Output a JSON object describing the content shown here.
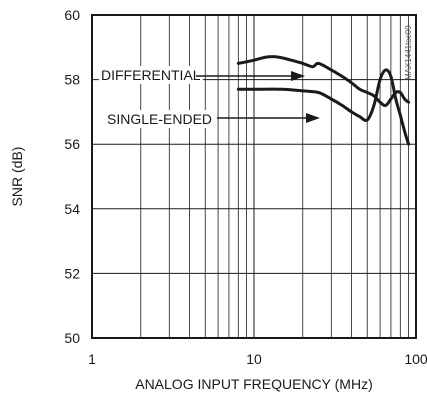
{
  "chart_data": {
    "type": "line",
    "title": "",
    "xlabel": "ANALOG INPUT FREQUENCY (MHz)",
    "ylabel": "SNR (dB)",
    "x_scale": "log",
    "xlim": [
      1,
      100
    ],
    "ylim": [
      50,
      60
    ],
    "x_ticks": [
      1,
      10,
      100
    ],
    "x_tick_labels": [
      "1",
      "10",
      "100"
    ],
    "y_ticks": [
      50,
      52,
      54,
      56,
      58,
      60
    ],
    "y_tick_labels": [
      "50",
      "52",
      "54",
      "56",
      "58",
      "60"
    ],
    "grid": true,
    "series": [
      {
        "name": "DIFFERENTIAL",
        "x": [
          8,
          10,
          12,
          14,
          17,
          20,
          23,
          25,
          30,
          35,
          40,
          45,
          50,
          55,
          60,
          65,
          70,
          75,
          80,
          85,
          90
        ],
        "y": [
          58.5,
          58.6,
          58.7,
          58.7,
          58.6,
          58.5,
          58.4,
          58.5,
          58.3,
          58.1,
          57.9,
          57.7,
          57.6,
          57.5,
          57.3,
          57.2,
          57.4,
          57.6,
          57.6,
          57.4,
          57.3
        ]
      },
      {
        "name": "SINGLE-ENDED",
        "x": [
          8,
          10,
          15,
          20,
          25,
          30,
          35,
          40,
          45,
          50,
          55,
          60,
          65,
          70,
          75,
          80,
          85,
          90
        ],
        "y": [
          57.7,
          57.7,
          57.7,
          57.65,
          57.6,
          57.4,
          57.2,
          57.0,
          56.85,
          56.75,
          57.2,
          58.0,
          58.3,
          58.1,
          57.4,
          56.9,
          56.4,
          56.0
        ]
      }
    ],
    "annotations": [
      {
        "text": "DIFFERENTIAL",
        "arrow_to_series": "DIFFERENTIAL"
      },
      {
        "text": "SINGLE-ENDED",
        "arrow_to_series": "SINGLE-ENDED"
      }
    ],
    "watermark": "MAX1441toc09"
  }
}
